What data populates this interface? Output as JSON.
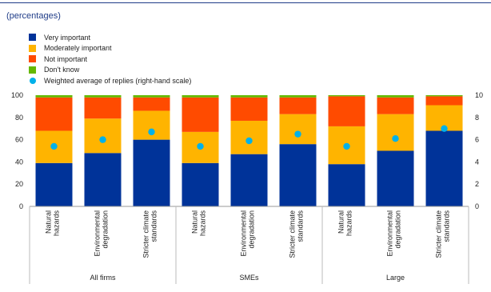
{
  "subtitle": "(percentages)",
  "legend": [
    {
      "label": "Very important",
      "color": "#003399"
    },
    {
      "label": "Moderately important",
      "color": "#ffb400"
    },
    {
      "label": "Not important",
      "color": "#ff4b00"
    },
    {
      "label": "Don't know",
      "color": "#65b800"
    },
    {
      "label": "Weighted average of  replies (right-hand scale)",
      "color": "#00b1ea"
    }
  ],
  "chart_data": {
    "type": "bar",
    "stacked": true,
    "categories": [
      "Natural hazards",
      "Environmental degradation",
      "Stricter climate standards",
      "Natural hazards",
      "Environmental degradation",
      "Stricter climate standards",
      "Natural hazards",
      "Environmental degradation",
      "Stricter climate standards"
    ],
    "category_lines": [
      [
        "Natural",
        "hazards"
      ],
      [
        "Environmental",
        "degradation"
      ],
      [
        "Stricter climate",
        "standards"
      ],
      [
        "Natural",
        "hazards"
      ],
      [
        "Environmental",
        "degradation"
      ],
      [
        "Stricter climate",
        "standards"
      ],
      [
        "Natural",
        "hazards"
      ],
      [
        "Environmental",
        "degradation"
      ],
      [
        "Stricter climate",
        "standards"
      ]
    ],
    "groups": [
      {
        "label": "All firms",
        "categories": [
          0,
          1,
          2
        ]
      },
      {
        "label": "SMEs",
        "categories": [
          3,
          4,
          5
        ]
      },
      {
        "label": "Large",
        "categories": [
          6,
          7,
          8
        ]
      }
    ],
    "series": [
      {
        "name": "Very important",
        "values": [
          39,
          48,
          60,
          39,
          47,
          56,
          38,
          50,
          68
        ]
      },
      {
        "name": "Moderately important",
        "values": [
          29,
          31,
          26,
          28,
          30,
          27,
          34,
          33,
          23
        ]
      },
      {
        "name": "Not important",
        "values": [
          30,
          19,
          12,
          31,
          21,
          15,
          27,
          15,
          8
        ]
      },
      {
        "name": "Don't know",
        "values": [
          2,
          2,
          2,
          2,
          2,
          2,
          1,
          2,
          1
        ]
      }
    ],
    "weighted_average": {
      "name": "Weighted average of  replies (right-hand scale)",
      "axis": "right",
      "values": [
        5.4,
        6.0,
        6.7,
        5.4,
        5.9,
        6.5,
        5.4,
        6.1,
        7.0
      ]
    },
    "ylim_left": [
      0,
      100
    ],
    "yticks_left": [
      0,
      20,
      40,
      60,
      80,
      100
    ],
    "ylim_right": [
      0,
      10
    ],
    "yticks_right": [
      0,
      2,
      4,
      6,
      8,
      10
    ],
    "grid": false,
    "legend_position": "top-left"
  }
}
